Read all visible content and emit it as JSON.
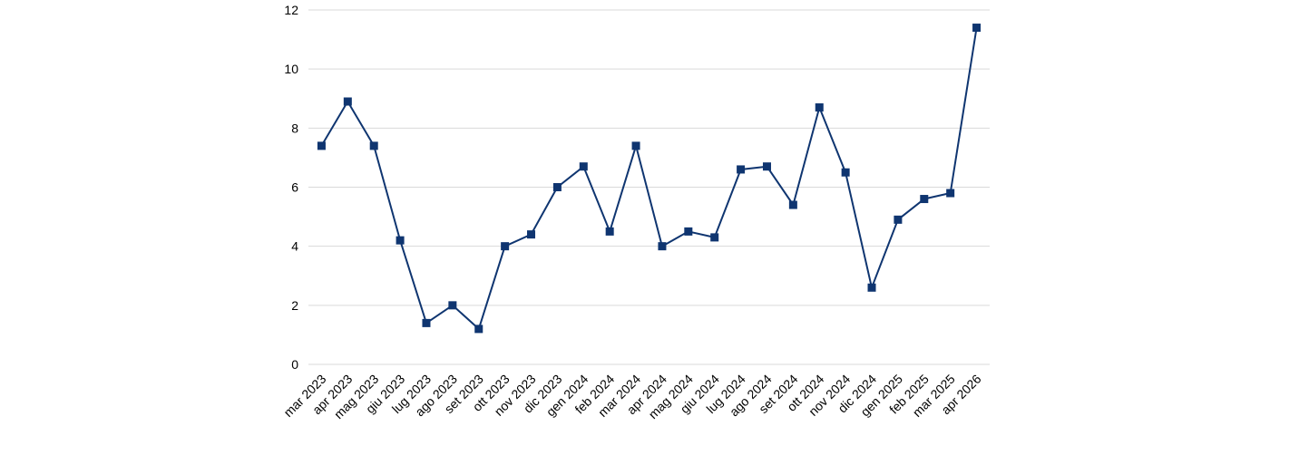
{
  "chart_data": {
    "type": "line",
    "title": "",
    "xlabel": "",
    "ylabel": "",
    "categories": [
      "mar 2023",
      "apr 2023",
      "mag 2023",
      "giu 2023",
      "lug 2023",
      "ago 2023",
      "set 2023",
      "ott 2023",
      "nov 2023",
      "dic 2023",
      "gen 2024",
      "feb 2024",
      "mar 2024",
      "apr 2024",
      "mag 2024",
      "giu 2024",
      "lug 2024",
      "ago 2024",
      "set 2024",
      "ott 2024",
      "nov 2024",
      "dic 2024",
      "gen 2025",
      "feb 2025",
      "mar 2025",
      "apr 2026"
    ],
    "series": [
      {
        "values": [
          7.4,
          8.9,
          7.4,
          4.2,
          1.4,
          2.0,
          1.2,
          4.0,
          4.4,
          6.0,
          6.7,
          4.5,
          7.4,
          4.0,
          4.5,
          4.3,
          6.6,
          6.7,
          5.4,
          8.7,
          6.5,
          2.6,
          4.9,
          5.6,
          5.8,
          11.4
        ],
        "color": "#0f3570",
        "marker": "square"
      }
    ],
    "ylim": [
      0,
      12
    ],
    "yticks": [
      0,
      2,
      4,
      6,
      8,
      10,
      12
    ],
    "grid": true,
    "gridColor": "#d9d9d9",
    "legend": "none"
  }
}
